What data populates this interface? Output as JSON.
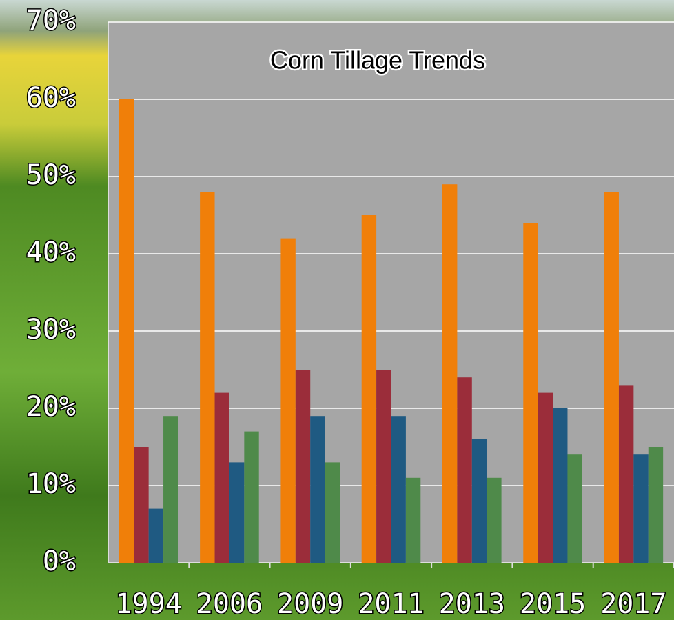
{
  "chart_data": {
    "type": "bar",
    "title": "Corn Tillage Trends",
    "categories": [
      "1994",
      "2006",
      "2009",
      "2011",
      "2013",
      "2015",
      "2017"
    ],
    "series": [
      {
        "color": "#f07f09",
        "values": [
          60,
          48,
          42,
          45,
          49,
          44,
          48
        ]
      },
      {
        "color": "#9b2d3a",
        "values": [
          15,
          22,
          25,
          25,
          24,
          22,
          23
        ]
      },
      {
        "color": "#1f5a82",
        "values": [
          7,
          13,
          19,
          19,
          16,
          20,
          14
        ]
      },
      {
        "color": "#4f8a4a",
        "values": [
          19,
          17,
          13,
          11,
          11,
          14,
          15
        ]
      }
    ],
    "ylim": [
      0,
      70
    ],
    "yticks": [
      {
        "value": 0,
        "label": "0%"
      },
      {
        "value": 10,
        "label": "10%"
      },
      {
        "value": 20,
        "label": "20%"
      },
      {
        "value": 30,
        "label": "30%"
      },
      {
        "value": 40,
        "label": "40%"
      },
      {
        "value": 50,
        "label": "50%"
      },
      {
        "value": 60,
        "label": "60%"
      },
      {
        "value": 70,
        "label": "70%"
      }
    ],
    "grid": true
  }
}
